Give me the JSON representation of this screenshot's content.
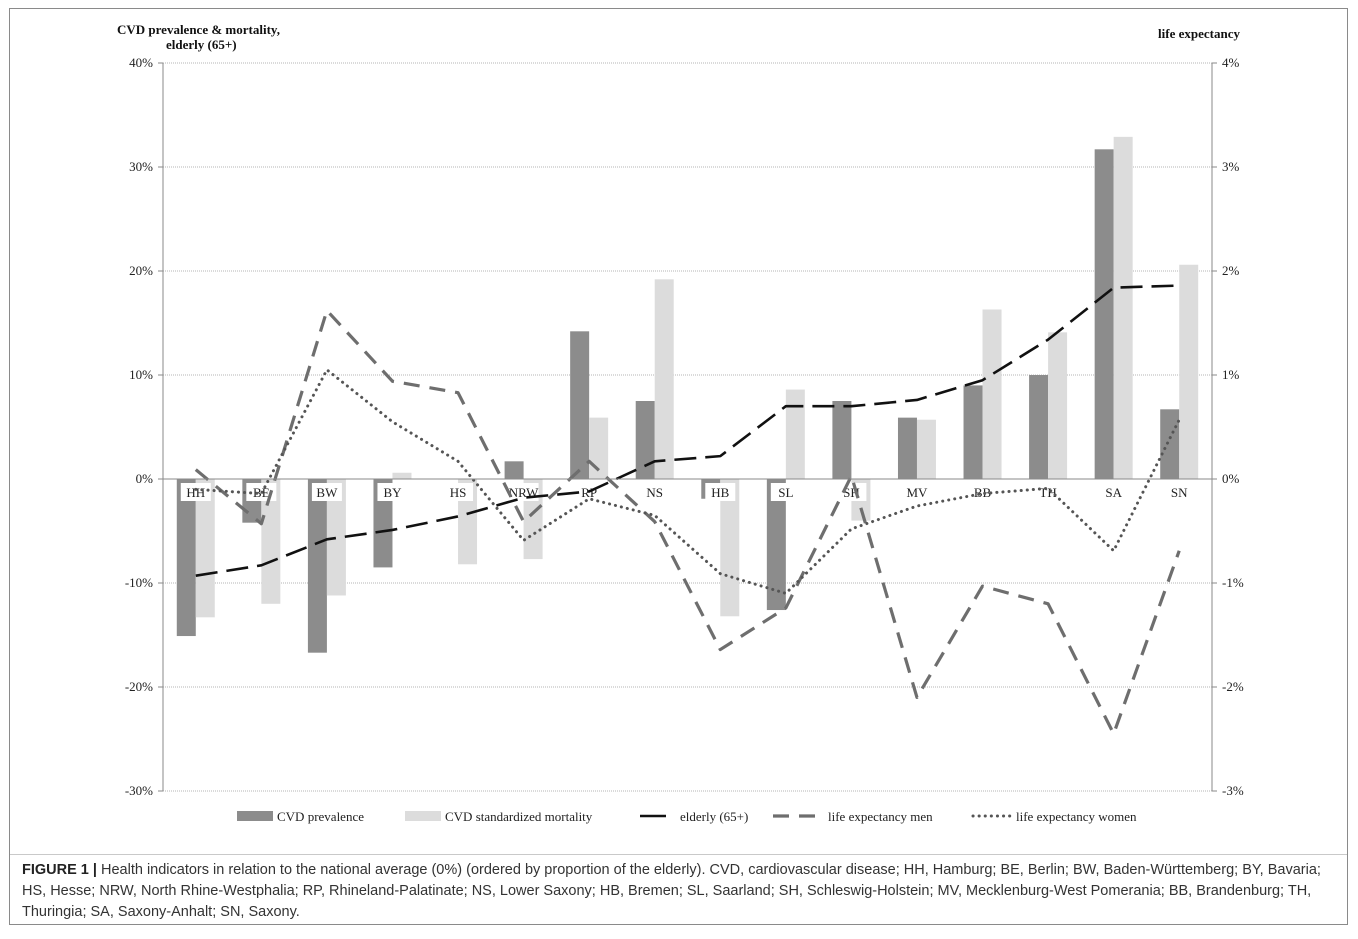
{
  "chart_data": {
    "type": "bar",
    "left_axis_title_lines": [
      "CVD prevalence & mortality,",
      "elderly (65+)"
    ],
    "right_axis_title": "life expectancy",
    "left_ticks": [
      "40%",
      "30%",
      "20%",
      "10%",
      "0%",
      "-10%",
      "-20%",
      "-30%"
    ],
    "right_ticks": [
      "4%",
      "3%",
      "2%",
      "1%",
      "0%",
      "-1%",
      "-2%",
      "-3%"
    ],
    "ylim_left": [
      -30,
      40
    ],
    "ylim_right": [
      -3,
      4
    ],
    "categories": [
      "HH",
      "BE",
      "BW",
      "BY",
      "HS",
      "NRW",
      "RP",
      "NS",
      "HB",
      "SL",
      "SH",
      "MV",
      "BB",
      "TH",
      "SA",
      "SN"
    ],
    "series": [
      {
        "name": "CVD prevalence",
        "type": "bar",
        "axis": "left",
        "color": "#8c8c8c",
        "values": [
          -15.1,
          -4.2,
          -16.7,
          -8.5,
          0.0,
          1.7,
          14.2,
          7.5,
          -1.9,
          -12.6,
          7.5,
          5.9,
          9.0,
          10.0,
          31.7,
          6.7
        ]
      },
      {
        "name": "CVD standardized mortality",
        "type": "bar",
        "axis": "left",
        "color": "#dcdcdc",
        "values": [
          -13.3,
          -12.0,
          -11.2,
          0.6,
          -8.2,
          -7.7,
          5.9,
          19.2,
          -13.2,
          8.6,
          -4.0,
          5.7,
          16.3,
          14.1,
          32.9,
          20.6
        ]
      },
      {
        "name": "elderly (65+)",
        "type": "line",
        "axis": "left",
        "style": "long-dash",
        "color": "#111111",
        "values": [
          -9.3,
          -8.3,
          -5.8,
          -4.9,
          -3.6,
          -1.8,
          -1.2,
          1.7,
          2.2,
          7.0,
          7.0,
          7.6,
          9.5,
          13.4,
          18.4,
          18.6
        ]
      },
      {
        "name": "life expectancy men",
        "type": "line",
        "axis": "right",
        "style": "dash",
        "color": "#6e6e6e",
        "values": [
          0.09,
          -0.43,
          1.62,
          0.94,
          0.83,
          -0.41,
          0.17,
          -0.41,
          -1.64,
          -1.24,
          0.03,
          -2.1,
          -1.03,
          -1.2,
          -2.45,
          -0.69
        ]
      },
      {
        "name": "life expectancy women",
        "type": "line",
        "axis": "right",
        "style": "dot",
        "color": "#555555",
        "values": [
          -0.1,
          -0.14,
          1.05,
          0.55,
          0.17,
          -0.59,
          -0.19,
          -0.35,
          -0.91,
          -1.1,
          -0.48,
          -0.26,
          -0.14,
          -0.09,
          -0.69,
          0.57
        ]
      }
    ],
    "grid": true,
    "legend_position": "bottom"
  },
  "caption": {
    "label": "FIGURE 1 |",
    "text": " Health indicators in relation to the national average (0%) (ordered by proportion of the elderly). CVD, cardiovascular disease; HH, Hamburg; BE, Berlin; BW, Baden-Württemberg; BY, Bavaria; HS, Hesse; NRW, North Rhine-Westphalia; RP, Rhineland-Palatinate; NS, Lower Saxony; HB, Bremen; SL, Saarland; SH, Schleswig-Holstein; MV, Mecklenburg-West Pomerania; BB, Brandenburg; TH, Thuringia; SA, Saxony-Anhalt; SN, Saxony."
  }
}
